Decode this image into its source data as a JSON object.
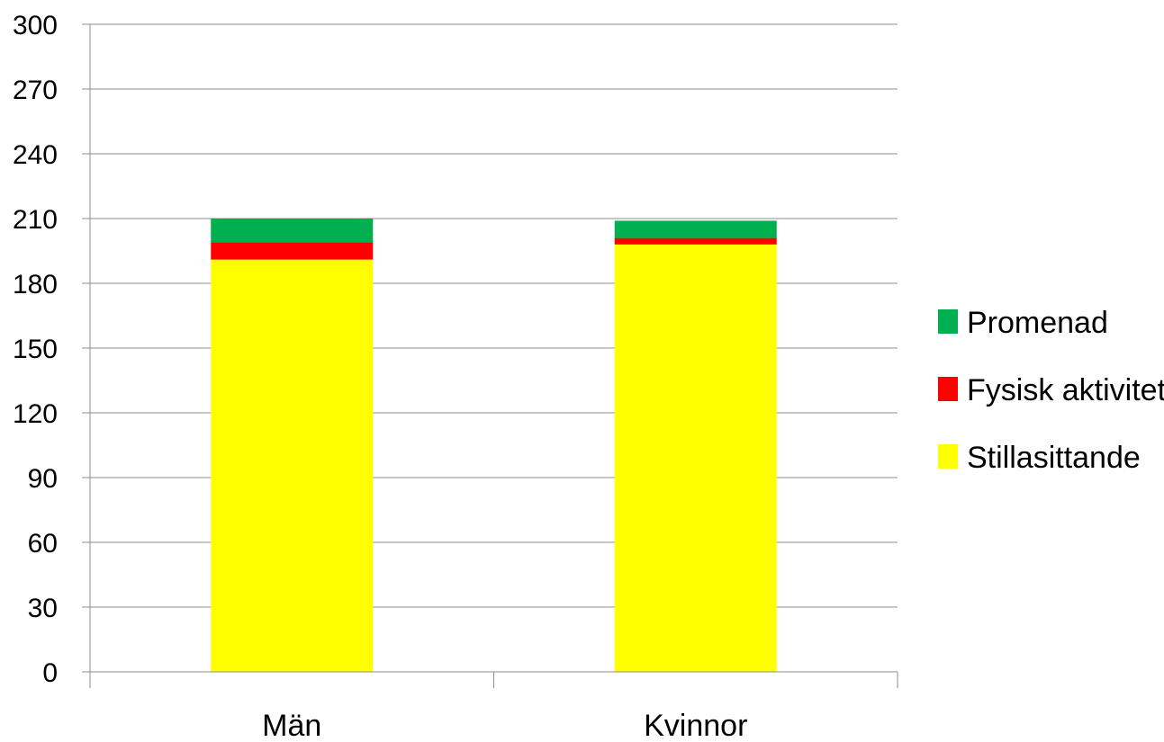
{
  "chart_data": {
    "type": "bar",
    "stacked": true,
    "categories": [
      "Män",
      "Kvinnor"
    ],
    "series": [
      {
        "name": "Stillasittande",
        "color": "#FFFF00",
        "values": [
          191,
          198
        ]
      },
      {
        "name": "Fysisk aktivitet",
        "color": "#FF0000",
        "values": [
          8,
          3
        ]
      },
      {
        "name": "Promenad",
        "color": "#00B050",
        "values": [
          11,
          8
        ]
      }
    ],
    "ylim": [
      0,
      300
    ],
    "yticks": [
      0,
      30,
      60,
      90,
      120,
      150,
      180,
      210,
      240,
      270,
      300
    ],
    "grid": true,
    "legend_position": "right",
    "title": "",
    "xlabel": "",
    "ylabel": ""
  }
}
